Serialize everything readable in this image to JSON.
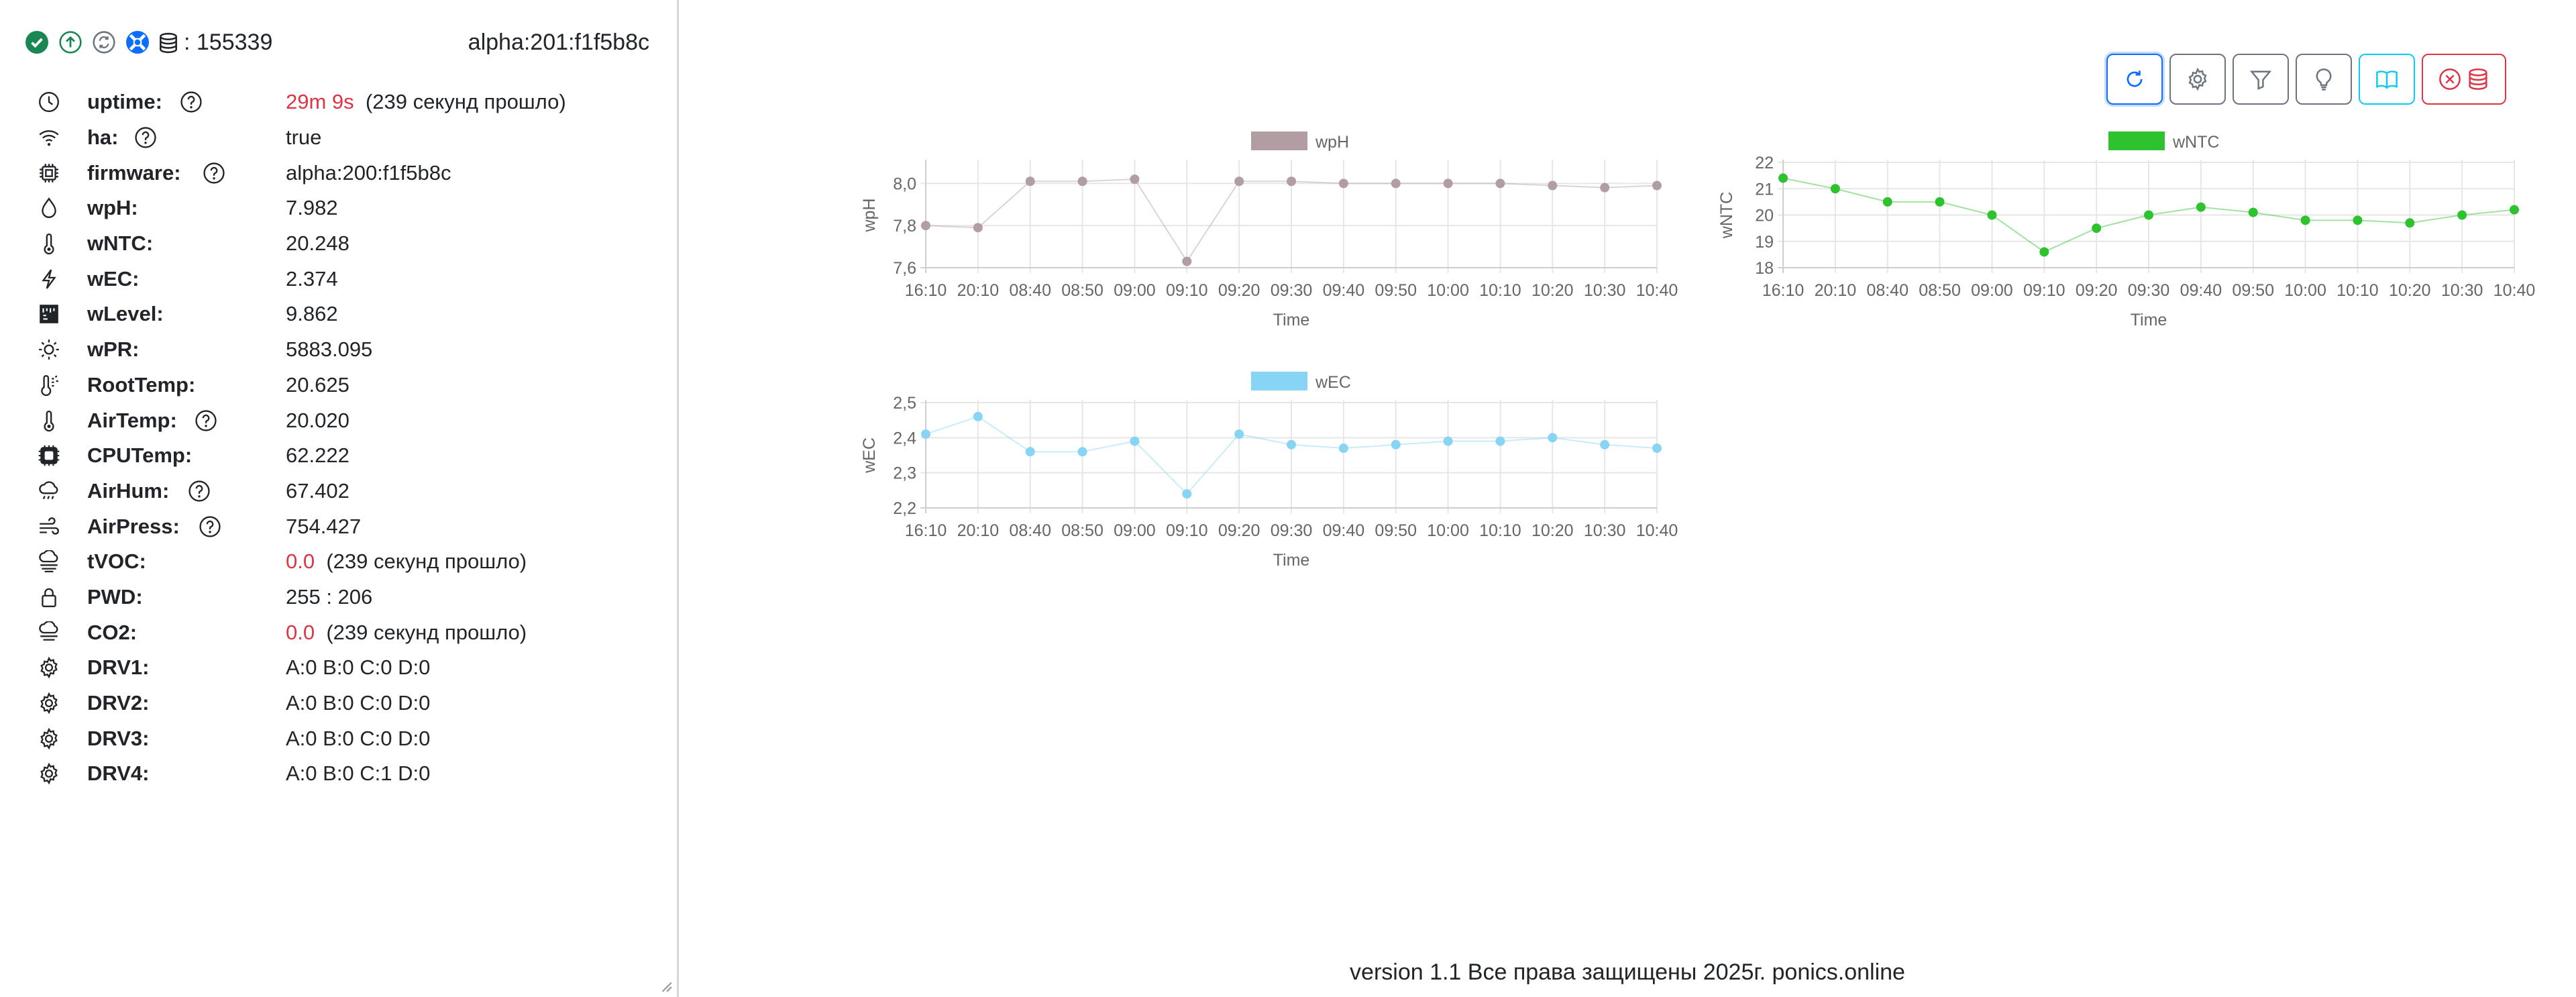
{
  "header": {
    "db_count": ": 155339",
    "device_id": "alpha:201:f1f5b8c",
    "status_icons": [
      "check-circle-icon",
      "arrow-up-circle-icon",
      "sync-icon",
      "lifebuoy-icon"
    ]
  },
  "metrics": [
    {
      "icon": "clock-icon",
      "label": "uptime:",
      "help": true,
      "value_red": "29m 9s",
      "value": "(239 секунд прошло)"
    },
    {
      "icon": "wifi-icon",
      "label": "ha:",
      "help": true,
      "value": "true"
    },
    {
      "icon": "chip-icon",
      "label": "firmware:",
      "help": true,
      "value": "alpha:200:f1f5b8c"
    },
    {
      "icon": "droplet-icon",
      "label": "wpH:",
      "value": "7.982"
    },
    {
      "icon": "thermometer-icon",
      "label": "wNTC:",
      "value": "20.248"
    },
    {
      "icon": "lightning-icon",
      "label": "wEC:",
      "value": "2.374"
    },
    {
      "icon": "ruler-icon",
      "label": "wLevel:",
      "value": "9.862"
    },
    {
      "icon": "sun-icon",
      "label": "wPR:",
      "value": "5883.095"
    },
    {
      "icon": "thermometer-sun-icon",
      "label": "RootTemp:",
      "value": "20.625"
    },
    {
      "icon": "thermometer-icon",
      "label": "AirTemp:",
      "help": true,
      "value": "20.020"
    },
    {
      "icon": "cpu-icon",
      "label": "CPUTemp:",
      "value": "62.222"
    },
    {
      "icon": "cloud-drizzle-icon",
      "label": "AirHum:",
      "help": true,
      "value": "67.402"
    },
    {
      "icon": "wind-icon",
      "label": "AirPress:",
      "help": true,
      "value": "754.427"
    },
    {
      "icon": "cloud-haze-icon",
      "label": "tVOC:",
      "value_red": "0.0",
      "value": "(239 секунд прошло)"
    },
    {
      "icon": "lock-icon",
      "label": "PWD:",
      "value": "255 : 206"
    },
    {
      "icon": "cloud-fog-icon",
      "label": "CO2:",
      "value_red": "0.0",
      "value": "(239 секунд прошло)"
    },
    {
      "icon": "gear-icon",
      "label": "DRV1:",
      "value": "A:0 B:0 C:0 D:0"
    },
    {
      "icon": "gear-icon",
      "label": "DRV2:",
      "value": "A:0 B:0 C:0 D:0"
    },
    {
      "icon": "gear-icon",
      "label": "DRV3:",
      "value": "A:0 B:0 C:0 D:0"
    },
    {
      "icon": "gear-icon",
      "label": "DRV4:",
      "value": "A:0 B:0 C:1 D:0"
    }
  ],
  "toolbar": {
    "buttons": [
      "refresh-icon",
      "gear-icon",
      "filter-icon",
      "lightbulb-icon",
      "book-icon",
      "close-database-icon"
    ]
  },
  "chart_data": [
    {
      "type": "line",
      "name": "chart-wph",
      "categories": [
        "16:10",
        "20:10",
        "08:40",
        "08:50",
        "09:00",
        "09:10",
        "09:20",
        "09:30",
        "09:40",
        "09:50",
        "10:00",
        "10:10",
        "10:20",
        "10:30",
        "10:40"
      ],
      "series": [
        {
          "name": "wpH",
          "values": [
            7.8,
            7.79,
            8.01,
            8.01,
            8.02,
            7.63,
            8.01,
            8.01,
            8.0,
            8.0,
            8.0,
            8.0,
            7.99,
            7.98,
            7.99
          ]
        }
      ],
      "ylim": [
        7.6,
        8.1
      ],
      "yticks": [
        "7,6",
        "7,8",
        "8,0"
      ],
      "xlabel": "Time",
      "ylabel": "wpH",
      "color": "#b29ea2",
      "legend": "top"
    },
    {
      "type": "line",
      "name": "chart-wntc",
      "categories": [
        "16:10",
        "20:10",
        "08:40",
        "08:50",
        "09:00",
        "09:10",
        "09:20",
        "09:30",
        "09:40",
        "09:50",
        "10:00",
        "10:10",
        "10:20",
        "10:30",
        "10:40"
      ],
      "series": [
        {
          "name": "wNTC",
          "values": [
            21.4,
            21.0,
            20.5,
            20.5,
            20.0,
            18.6,
            19.5,
            20.0,
            20.3,
            20.1,
            19.8,
            19.8,
            19.7,
            20.0,
            20.2
          ]
        }
      ],
      "ylim": [
        18,
        22
      ],
      "yticks": [
        "18",
        "19",
        "20",
        "21",
        "22"
      ],
      "xlabel": "Time",
      "ylabel": "wNTC",
      "color": "#2ec22e",
      "legend": "top"
    },
    {
      "type": "line",
      "name": "chart-wec",
      "categories": [
        "16:10",
        "20:10",
        "08:40",
        "08:50",
        "09:00",
        "09:10",
        "09:20",
        "09:30",
        "09:40",
        "09:50",
        "10:00",
        "10:10",
        "10:20",
        "10:30",
        "10:40"
      ],
      "series": [
        {
          "name": "wEC",
          "values": [
            2.41,
            2.46,
            2.36,
            2.36,
            2.39,
            2.24,
            2.41,
            2.38,
            2.37,
            2.38,
            2.39,
            2.39,
            2.4,
            2.38,
            2.37
          ]
        }
      ],
      "ylim": [
        2.2,
        2.5
      ],
      "yticks": [
        "2,2",
        "2,3",
        "2,4",
        "2,5"
      ],
      "xlabel": "Time",
      "ylabel": "wEC",
      "color": "#88d4f5",
      "legend": "top"
    }
  ],
  "footer": {
    "text": "version 1.1 Все права защищены 2025г. ponics.online"
  }
}
